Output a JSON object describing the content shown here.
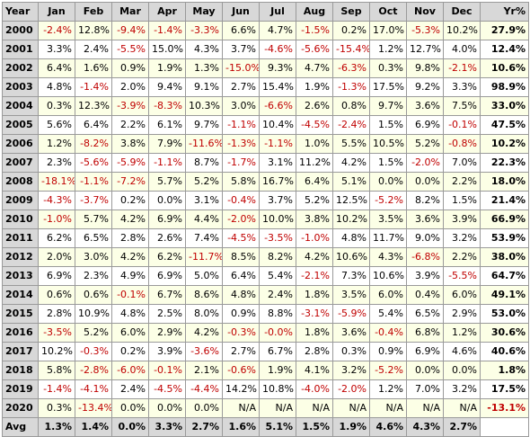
{
  "table": {
    "headers": [
      "Year",
      "Jan",
      "Feb",
      "Mar",
      "Apr",
      "May",
      "Jun",
      "Jul",
      "Aug",
      "Sep",
      "Oct",
      "Nov",
      "Dec",
      "Yr%"
    ],
    "rows": [
      {
        "year": "2000",
        "months": [
          "-2.4%",
          "12.8%",
          "-9.4%",
          "-1.4%",
          "-3.3%",
          "6.6%",
          "4.7%",
          "-1.5%",
          "0.2%",
          "17.0%",
          "-5.3%",
          "10.2%"
        ],
        "yr": "27.9%"
      },
      {
        "year": "2001",
        "months": [
          "3.3%",
          "2.4%",
          "-5.5%",
          "15.0%",
          "4.3%",
          "3.7%",
          "-4.6%",
          "-5.6%",
          "-15.4%",
          "1.2%",
          "12.7%",
          "4.0%"
        ],
        "yr": "12.4%"
      },
      {
        "year": "2002",
        "months": [
          "6.4%",
          "1.6%",
          "0.9%",
          "1.9%",
          "1.3%",
          "-15.0%",
          "9.3%",
          "4.7%",
          "-6.3%",
          "0.3%",
          "9.8%",
          "-2.1%"
        ],
        "yr": "10.6%"
      },
      {
        "year": "2003",
        "months": [
          "4.8%",
          "-1.4%",
          "2.0%",
          "9.4%",
          "9.1%",
          "2.7%",
          "15.4%",
          "1.9%",
          "-1.3%",
          "17.5%",
          "9.2%",
          "3.3%"
        ],
        "yr": "98.9%"
      },
      {
        "year": "2004",
        "months": [
          "0.3%",
          "12.3%",
          "-3.9%",
          "-8.3%",
          "10.3%",
          "3.0%",
          "-6.6%",
          "2.6%",
          "0.8%",
          "9.7%",
          "3.6%",
          "7.5%"
        ],
        "yr": "33.0%"
      },
      {
        "year": "2005",
        "months": [
          "5.6%",
          "6.4%",
          "2.2%",
          "6.1%",
          "9.7%",
          "-1.1%",
          "10.4%",
          "-4.5%",
          "-2.4%",
          "1.5%",
          "6.9%",
          "-0.1%"
        ],
        "yr": "47.5%"
      },
      {
        "year": "2006",
        "months": [
          "1.2%",
          "-8.2%",
          "3.8%",
          "7.9%",
          "-11.6%",
          "-1.3%",
          "-1.1%",
          "1.0%",
          "5.5%",
          "10.5%",
          "5.2%",
          "-0.8%"
        ],
        "yr": "10.2%"
      },
      {
        "year": "2007",
        "months": [
          "2.3%",
          "-5.6%",
          "-5.9%",
          "-1.1%",
          "8.7%",
          "-1.7%",
          "3.1%",
          "11.2%",
          "4.2%",
          "1.5%",
          "-2.0%",
          "7.0%"
        ],
        "yr": "22.3%"
      },
      {
        "year": "2008",
        "months": [
          "-18.1%",
          "-1.1%",
          "-7.2%",
          "5.7%",
          "5.2%",
          "5.8%",
          "16.7%",
          "6.4%",
          "5.1%",
          "0.0%",
          "0.0%",
          "2.2%"
        ],
        "yr": "18.0%"
      },
      {
        "year": "2009",
        "months": [
          "-4.3%",
          "-3.7%",
          "0.2%",
          "0.0%",
          "3.1%",
          "-0.4%",
          "3.7%",
          "5.2%",
          "12.5%",
          "-5.2%",
          "8.2%",
          "1.5%"
        ],
        "yr": "21.4%"
      },
      {
        "year": "2010",
        "months": [
          "-1.0%",
          "5.7%",
          "4.2%",
          "6.9%",
          "4.4%",
          "-2.0%",
          "10.0%",
          "3.8%",
          "10.2%",
          "3.5%",
          "3.6%",
          "3.9%"
        ],
        "yr": "66.9%"
      },
      {
        "year": "2011",
        "months": [
          "6.2%",
          "6.5%",
          "2.8%",
          "2.6%",
          "7.4%",
          "-4.5%",
          "-3.5%",
          "-1.0%",
          "4.8%",
          "11.7%",
          "9.0%",
          "3.2%"
        ],
        "yr": "53.9%"
      },
      {
        "year": "2012",
        "months": [
          "2.0%",
          "3.0%",
          "4.2%",
          "6.2%",
          "-11.7%",
          "8.5%",
          "8.2%",
          "4.2%",
          "10.6%",
          "4.3%",
          "-6.8%",
          "2.2%"
        ],
        "yr": "38.0%"
      },
      {
        "year": "2013",
        "months": [
          "6.9%",
          "2.3%",
          "4.9%",
          "6.9%",
          "5.0%",
          "6.4%",
          "5.4%",
          "-2.1%",
          "7.3%",
          "10.6%",
          "3.9%",
          "-5.5%"
        ],
        "yr": "64.7%"
      },
      {
        "year": "2014",
        "months": [
          "0.6%",
          "0.6%",
          "-0.1%",
          "6.7%",
          "8.6%",
          "4.8%",
          "2.4%",
          "1.8%",
          "3.5%",
          "6.0%",
          "0.4%",
          "6.0%"
        ],
        "yr": "49.1%"
      },
      {
        "year": "2015",
        "months": [
          "2.8%",
          "10.9%",
          "4.8%",
          "2.5%",
          "8.0%",
          "0.9%",
          "8.8%",
          "-3.1%",
          "-5.9%",
          "5.4%",
          "6.5%",
          "2.9%"
        ],
        "yr": "53.0%"
      },
      {
        "year": "2016",
        "months": [
          "-3.5%",
          "5.2%",
          "6.0%",
          "2.9%",
          "4.2%",
          "-0.3%",
          "-0.0%",
          "1.8%",
          "3.6%",
          "-0.4%",
          "6.8%",
          "1.2%"
        ],
        "yr": "30.6%"
      },
      {
        "year": "2017",
        "months": [
          "10.2%",
          "-0.3%",
          "0.2%",
          "3.9%",
          "-3.6%",
          "2.7%",
          "6.7%",
          "2.8%",
          "0.3%",
          "0.9%",
          "6.9%",
          "4.6%"
        ],
        "yr": "40.6%"
      },
      {
        "year": "2018",
        "months": [
          "5.8%",
          "-2.8%",
          "-6.0%",
          "-0.1%",
          "2.1%",
          "-0.6%",
          "1.9%",
          "4.1%",
          "3.2%",
          "-5.2%",
          "0.0%",
          "0.0%"
        ],
        "yr": "1.8%"
      },
      {
        "year": "2019",
        "months": [
          "-1.4%",
          "-4.1%",
          "2.4%",
          "-4.5%",
          "-4.4%",
          "14.2%",
          "10.8%",
          "-4.0%",
          "-2.0%",
          "1.2%",
          "7.0%",
          "3.2%"
        ],
        "yr": "17.5%"
      },
      {
        "year": "2020",
        "months": [
          "0.3%",
          "-13.4%",
          "0.0%",
          "0.0%",
          "0.0%",
          "N/A",
          "N/A",
          "N/A",
          "N/A",
          "N/A",
          "N/A",
          "N/A"
        ],
        "yr": "-13.1%"
      }
    ],
    "avg": {
      "label": "Avg",
      "months": [
        "1.3%",
        "1.4%",
        "0.0%",
        "3.3%",
        "2.7%",
        "1.6%",
        "5.1%",
        "1.5%",
        "1.9%",
        "4.6%",
        "4.3%",
        "2.7%"
      ],
      "yr": ""
    }
  },
  "colors": {
    "negative": "#c00000",
    "header_bg": "#d8d8d8",
    "odd_row_bg": "#fcffe6",
    "even_row_bg": "#ffffff",
    "grid": "#9a9a9a"
  }
}
